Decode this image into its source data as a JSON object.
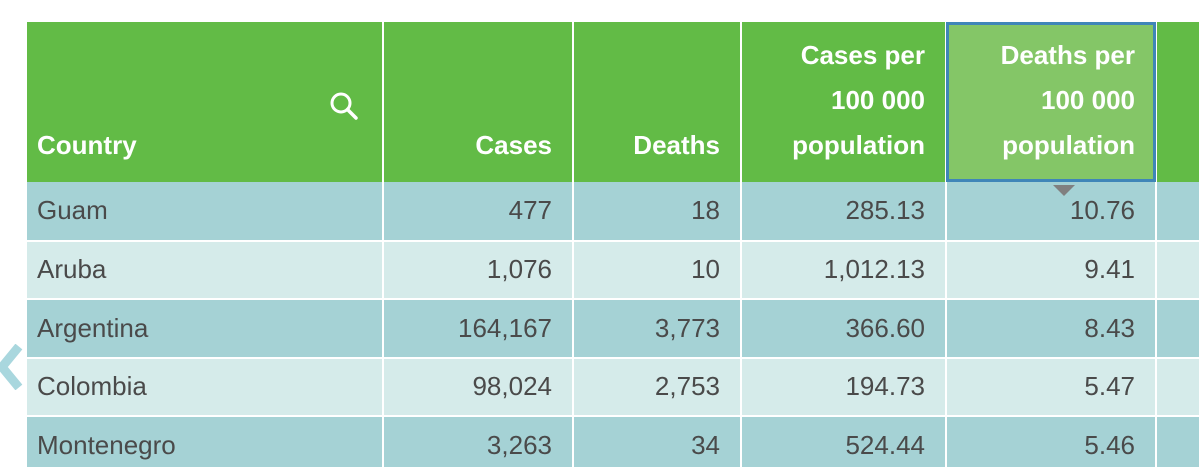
{
  "table": {
    "columns": [
      {
        "key": "country",
        "label": "Country"
      },
      {
        "key": "cases",
        "label": "Cases"
      },
      {
        "key": "deaths",
        "label": "Deaths"
      },
      {
        "key": "cases_per_100k",
        "label": "Cases per 100 000 population"
      },
      {
        "key": "deaths_per_100k",
        "label": "Deaths per 100 000 population"
      }
    ],
    "sorted_column": "deaths_per_100k",
    "sort_direction": "descending",
    "rows": [
      {
        "country": "Guam",
        "cases": "477",
        "deaths": "18",
        "cases_per_100k": "285.13",
        "deaths_per_100k": "10.76"
      },
      {
        "country": "Aruba",
        "cases": "1,076",
        "deaths": "10",
        "cases_per_100k": "1,012.13",
        "deaths_per_100k": "9.41"
      },
      {
        "country": "Argentina",
        "cases": "164,167",
        "deaths": "3,773",
        "cases_per_100k": "366.60",
        "deaths_per_100k": "8.43"
      },
      {
        "country": "Colombia",
        "cases": "98,024",
        "deaths": "2,753",
        "cases_per_100k": "194.73",
        "deaths_per_100k": "5.47"
      },
      {
        "country": "Montenegro",
        "cases": "3,263",
        "deaths": "34",
        "cases_per_100k": "524.44",
        "deaths_per_100k": "5.46"
      }
    ]
  },
  "icons": {
    "search": "search-icon",
    "sort": "sort-descending-arrow-icon",
    "scroll_left": "chevron-left-icon"
  },
  "colors": {
    "header_bg": "#62bb46",
    "header_sorted_bg": "#84c667",
    "sorted_outline": "#3f86b8",
    "row_odd": "#a5d2d5",
    "row_even": "#d5ebea",
    "cell_text": "#4a4a4a",
    "scroll_chevron": "#a9d7de"
  }
}
